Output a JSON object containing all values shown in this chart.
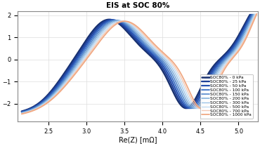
{
  "title": "EIS at SOC 80%",
  "xlabel": "Re(Z) [mΩ]",
  "xlim": [
    2.1,
    5.25
  ],
  "ylim": [
    -2.8,
    2.2
  ],
  "series": [
    {
      "label": "SOC80% - 0 kPa",
      "color": "#18306e",
      "lw": 1.8
    },
    {
      "label": "SOC80% - 25 kPa",
      "color": "#1e3f96",
      "lw": 1.6
    },
    {
      "label": "SOC80% - 50 kPa",
      "color": "#2550b0",
      "lw": 1.5
    },
    {
      "label": "SOC80% - 100 kPa",
      "color": "#3a6fc4",
      "lw": 1.3
    },
    {
      "label": "SOC80% - 150 kPa",
      "color": "#5588cc",
      "lw": 1.2
    },
    {
      "label": "SOC80% - 200 kPa",
      "color": "#7aaad8",
      "lw": 1.1
    },
    {
      "label": "SOC80% - 300 kPa",
      "color": "#9dc4e8",
      "lw": 1.0
    },
    {
      "label": "SOC80% - 500 kPa",
      "color": "#c0daf0",
      "lw": 1.0
    },
    {
      "label": "SOC80% - 700 kPa",
      "color": "#f2c8b4",
      "lw": 1.0
    },
    {
      "label": "SOC80% - 1000 kPa",
      "color": "#f0a882",
      "lw": 1.3
    }
  ],
  "xticks": [
    2.5,
    3.0,
    3.5,
    4.0,
    4.5,
    5.0
  ],
  "yticks": [
    -2,
    -1,
    0,
    1,
    2
  ],
  "grid_color": "#dddddd",
  "title_fontsize": 7.5,
  "tick_fontsize": 6,
  "xlabel_fontsize": 7
}
